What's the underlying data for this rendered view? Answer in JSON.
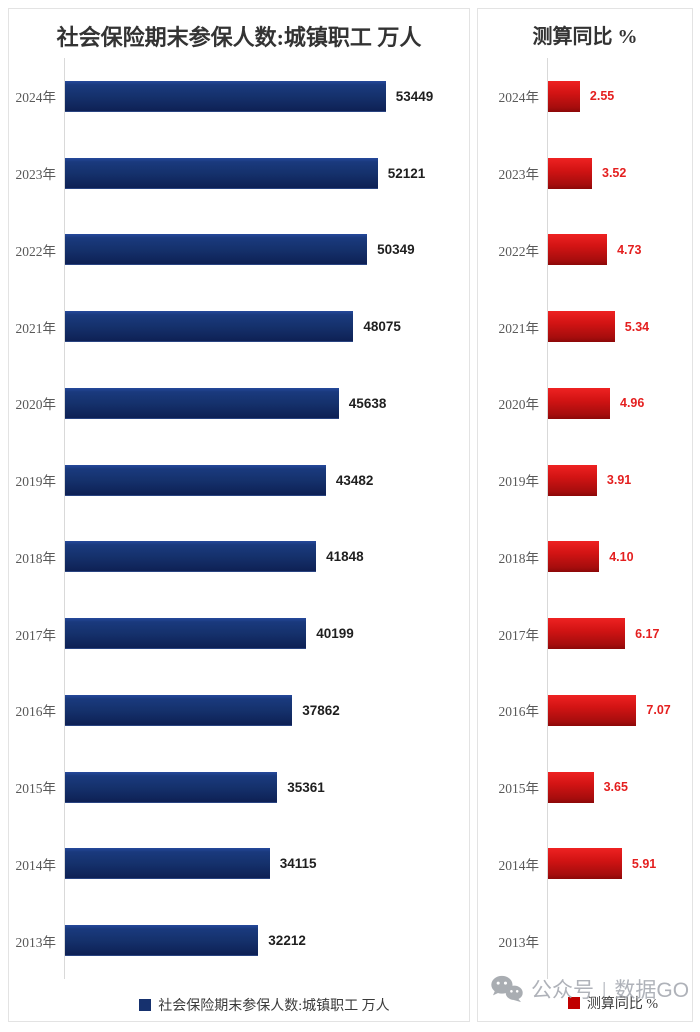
{
  "chart_data": [
    {
      "type": "bar",
      "orientation": "horizontal",
      "title": "社会保险期末参保人数:城镇职工 万人",
      "legend": "社会保险期末参保人数:城镇职工 万人",
      "legend_position": "bottom",
      "categories": [
        "2024年",
        "2023年",
        "2022年",
        "2021年",
        "2020年",
        "2019年",
        "2018年",
        "2017年",
        "2016年",
        "2015年",
        "2014年",
        "2013年"
      ],
      "values": [
        53449,
        52121,
        50349,
        48075,
        45638,
        43482,
        41848,
        40199,
        37862,
        35361,
        34115,
        32212
      ],
      "xlim": [
        0,
        60000
      ],
      "decimals": 0,
      "grid": false,
      "bar_color": "#15316c",
      "value_label_color": "#1f1f1f",
      "category_label_color": "#595959"
    },
    {
      "type": "bar",
      "orientation": "horizontal",
      "title": "测算同比 %",
      "legend": "测算同比 %",
      "legend_position": "bottom",
      "categories": [
        "2024年",
        "2023年",
        "2022年",
        "2021年",
        "2020年",
        "2019年",
        "2018年",
        "2017年",
        "2016年",
        "2015年",
        "2014年",
        "2013年"
      ],
      "values": [
        2.55,
        3.52,
        4.73,
        5.34,
        4.96,
        3.91,
        4.1,
        6.17,
        7.07,
        3.65,
        5.91,
        null
      ],
      "xlim": [
        0,
        8
      ],
      "decimals": 2,
      "grid": false,
      "bar_color": "#c00000",
      "value_label_color": "#e41f1f",
      "category_label_color": "#595959"
    }
  ],
  "watermark": {
    "icon": "wechat-icon",
    "account_label": "公众号",
    "separator": "|",
    "brand": "数据GO",
    "color": "#a9adb4"
  }
}
